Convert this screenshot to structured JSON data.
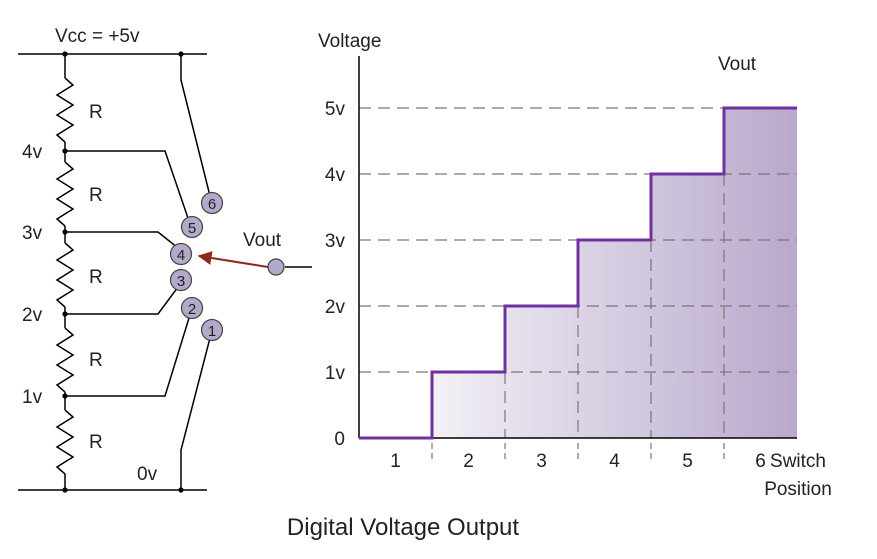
{
  "circuit": {
    "vcc_label": "Vcc = +5v",
    "ground_label": "0v",
    "resistor_label": "R",
    "tap_labels": [
      "4v",
      "3v",
      "2v",
      "1v"
    ],
    "switch_contacts": [
      "1",
      "2",
      "3",
      "4",
      "5",
      "6"
    ],
    "selected_contact": "4",
    "output_label": "Vout"
  },
  "chart_data": {
    "type": "line",
    "ylabel": "Voltage",
    "xlabel": "Switch Position",
    "series_label": "Vout",
    "y_ticks": [
      "0",
      "1v",
      "2v",
      "3v",
      "4v",
      "5v"
    ],
    "x_ticks": [
      "1",
      "2",
      "3",
      "4",
      "5",
      "6"
    ],
    "ylim": [
      0,
      5
    ],
    "xlim": [
      0.5,
      6.5
    ],
    "step": true,
    "x": [
      1,
      2,
      3,
      4,
      5,
      6
    ],
    "values": [
      0,
      1,
      2,
      3,
      4,
      5
    ],
    "colors": {
      "line": "#7030a0",
      "fill": "#b8a9cc",
      "grid": "#777777"
    }
  },
  "caption": "Digital Voltage Output",
  "colors": {
    "wire": "#000000",
    "contact_fill": "#b3a9c9",
    "arrow": "#8b2b1b"
  }
}
